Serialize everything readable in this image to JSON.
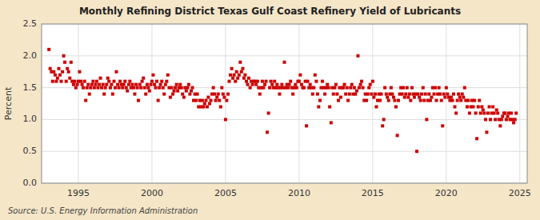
{
  "chart_data": {
    "type": "scatter",
    "title": "Monthly Refining District Texas Gulf Coast Refinery Yield of Lubricants",
    "y_label": "Percent",
    "annotations": [
      "Source: U.S. Energy Information Administration"
    ],
    "color": "#cc0000",
    "marker": "square",
    "grid": true,
    "xlim": [
      1992.5,
      2025.5
    ],
    "xticks": [
      1995,
      2000,
      2005,
      2010,
      2015,
      2020,
      2025
    ],
    "ylim": [
      0.0,
      2.5
    ],
    "yticks": [
      {
        "value": 0.0,
        "label": "0.0"
      },
      0.5,
      {
        "value": 1.0,
        "label": "1.0"
      },
      1.5,
      {
        "value": 2.0,
        "label": "2.0"
      },
      2.5
    ],
    "x": [
      1993.0,
      1993.08,
      1993.17,
      1993.25,
      1993.33,
      1993.42,
      1993.5,
      1993.58,
      1993.67,
      1993.75,
      1993.83,
      1993.92,
      1994.0,
      1994.08,
      1994.17,
      1994.25,
      1994.33,
      1994.42,
      1994.5,
      1994.58,
      1994.67,
      1994.75,
      1994.83,
      1994.92,
      1995.0,
      1995.08,
      1995.17,
      1995.25,
      1995.33,
      1995.42,
      1995.5,
      1995.58,
      1995.67,
      1995.75,
      1995.83,
      1995.92,
      1996.0,
      1996.08,
      1996.17,
      1996.25,
      1996.33,
      1996.42,
      1996.5,
      1996.58,
      1996.67,
      1996.75,
      1996.83,
      1996.92,
      1997.0,
      1997.08,
      1997.17,
      1997.25,
      1997.33,
      1997.42,
      1997.5,
      1997.58,
      1997.67,
      1997.75,
      1997.83,
      1997.92,
      1998.0,
      1998.08,
      1998.17,
      1998.25,
      1998.33,
      1998.42,
      1998.5,
      1998.58,
      1998.67,
      1998.75,
      1998.83,
      1998.92,
      1999.0,
      1999.08,
      1999.17,
      1999.25,
      1999.33,
      1999.42,
      1999.5,
      1999.58,
      1999.67,
      1999.75,
      1999.83,
      1999.92,
      2000.0,
      2000.08,
      2000.17,
      2000.25,
      2000.33,
      2000.42,
      2000.5,
      2000.58,
      2000.67,
      2000.75,
      2000.83,
      2000.92,
      2001.0,
      2001.08,
      2001.17,
      2001.25,
      2001.33,
      2001.42,
      2001.5,
      2001.58,
      2001.67,
      2001.75,
      2001.83,
      2001.92,
      2002.0,
      2002.08,
      2002.17,
      2002.25,
      2002.33,
      2002.42,
      2002.5,
      2002.58,
      2002.67,
      2002.75,
      2002.83,
      2002.92,
      2003.0,
      2003.08,
      2003.17,
      2003.25,
      2003.33,
      2003.42,
      2003.5,
      2003.58,
      2003.67,
      2003.75,
      2003.83,
      2003.92,
      2004.0,
      2004.08,
      2004.17,
      2004.25,
      2004.33,
      2004.42,
      2004.5,
      2004.58,
      2004.67,
      2004.75,
      2004.83,
      2004.92,
      2005.0,
      2005.08,
      2005.17,
      2005.25,
      2005.33,
      2005.42,
      2005.5,
      2005.58,
      2005.67,
      2005.75,
      2005.83,
      2005.92,
      2006.0,
      2006.08,
      2006.17,
      2006.25,
      2006.33,
      2006.42,
      2006.5,
      2006.58,
      2006.67,
      2006.75,
      2006.83,
      2006.92,
      2007.0,
      2007.08,
      2007.17,
      2007.25,
      2007.33,
      2007.42,
      2007.5,
      2007.58,
      2007.67,
      2007.75,
      2007.83,
      2007.92,
      2008.0,
      2008.08,
      2008.17,
      2008.25,
      2008.33,
      2008.42,
      2008.5,
      2008.58,
      2008.67,
      2008.75,
      2008.83,
      2008.92,
      2009.0,
      2009.08,
      2009.17,
      2009.25,
      2009.33,
      2009.42,
      2009.5,
      2009.58,
      2009.67,
      2009.75,
      2009.83,
      2009.92,
      2010.0,
      2010.08,
      2010.17,
      2010.25,
      2010.33,
      2010.42,
      2010.5,
      2010.58,
      2010.67,
      2010.75,
      2010.83,
      2010.92,
      2011.0,
      2011.08,
      2011.17,
      2011.25,
      2011.33,
      2011.42,
      2011.5,
      2011.58,
      2011.67,
      2011.75,
      2011.83,
      2011.92,
      2012.0,
      2012.08,
      2012.17,
      2012.25,
      2012.33,
      2012.42,
      2012.5,
      2012.58,
      2012.67,
      2012.75,
      2012.83,
      2012.92,
      2013.0,
      2013.08,
      2013.17,
      2013.25,
      2013.33,
      2013.42,
      2013.5,
      2013.58,
      2013.67,
      2013.75,
      2013.83,
      2013.92,
      2014.0,
      2014.08,
      2014.17,
      2014.25,
      2014.33,
      2014.42,
      2014.5,
      2014.58,
      2014.67,
      2014.75,
      2014.83,
      2014.92,
      2015.0,
      2015.08,
      2015.17,
      2015.25,
      2015.33,
      2015.42,
      2015.5,
      2015.58,
      2015.67,
      2015.75,
      2015.83,
      2015.92,
      2016.0,
      2016.08,
      2016.17,
      2016.25,
      2016.33,
      2016.42,
      2016.5,
      2016.58,
      2016.67,
      2016.75,
      2016.83,
      2016.92,
      2017.0,
      2017.08,
      2017.17,
      2017.25,
      2017.33,
      2017.42,
      2017.5,
      2017.58,
      2017.67,
      2017.75,
      2017.83,
      2017.92,
      2018.0,
      2018.08,
      2018.17,
      2018.25,
      2018.33,
      2018.42,
      2018.5,
      2018.58,
      2018.67,
      2018.75,
      2018.83,
      2018.92,
      2019.0,
      2019.08,
      2019.17,
      2019.25,
      2019.33,
      2019.42,
      2019.5,
      2019.58,
      2019.67,
      2019.75,
      2019.83,
      2019.92,
      2020.0,
      2020.08,
      2020.17,
      2020.25,
      2020.33,
      2020.42,
      2020.5,
      2020.58,
      2020.67,
      2020.75,
      2020.83,
      2020.92,
      2021.0,
      2021.08,
      2021.17,
      2021.25,
      2021.33,
      2021.42,
      2021.5,
      2021.58,
      2021.67,
      2021.75,
      2021.83,
      2021.92,
      2022.0,
      2022.08,
      2022.17,
      2022.25,
      2022.33,
      2022.42,
      2022.5,
      2022.58,
      2022.67,
      2022.75,
      2022.83,
      2022.92,
      2023.0,
      2023.08,
      2023.17,
      2023.25,
      2023.33,
      2023.42,
      2023.5,
      2023.58,
      2023.67,
      2023.75,
      2023.83,
      2023.92,
      2024.0,
      2024.08,
      2024.17,
      2024.25,
      2024.33,
      2024.42,
      2024.5,
      2024.58,
      2024.67,
      2024.75
    ],
    "values": [
      2.1,
      1.8,
      1.75,
      1.6,
      1.75,
      1.7,
      1.6,
      1.65,
      1.8,
      1.7,
      1.6,
      1.75,
      2.0,
      1.9,
      1.6,
      1.8,
      1.75,
      1.65,
      1.9,
      1.6,
      1.55,
      1.6,
      1.5,
      1.55,
      1.6,
      1.75,
      1.6,
      1.55,
      1.5,
      1.6,
      1.3,
      1.5,
      1.55,
      1.4,
      1.5,
      1.55,
      1.6,
      1.5,
      1.55,
      1.6,
      1.5,
      1.55,
      1.65,
      1.5,
      1.55,
      1.4,
      1.5,
      1.55,
      1.65,
      1.6,
      1.5,
      1.55,
      1.4,
      1.6,
      1.5,
      1.75,
      1.55,
      1.5,
      1.6,
      1.55,
      1.5,
      1.55,
      1.6,
      1.5,
      1.45,
      1.55,
      1.6,
      1.5,
      1.55,
      1.5,
      1.4,
      1.55,
      1.5,
      1.3,
      1.55,
      1.5,
      1.6,
      1.65,
      1.5,
      1.4,
      1.55,
      1.5,
      1.45,
      1.55,
      1.6,
      1.7,
      1.55,
      1.5,
      1.6,
      1.3,
      1.5,
      1.55,
      1.6,
      1.5,
      1.4,
      1.55,
      1.6,
      1.7,
      1.5,
      1.35,
      1.5,
      1.4,
      1.45,
      1.5,
      1.55,
      1.45,
      1.5,
      1.55,
      1.5,
      1.4,
      1.35,
      1.5,
      1.45,
      1.5,
      1.55,
      1.4,
      1.45,
      1.5,
      1.3,
      1.4,
      1.3,
      1.4,
      1.2,
      1.3,
      1.2,
      1.3,
      1.2,
      1.25,
      1.3,
      1.2,
      1.35,
      1.25,
      1.3,
      1.4,
      1.5,
      1.4,
      1.3,
      1.35,
      1.4,
      1.3,
      1.2,
      1.5,
      1.4,
      1.35,
      1.0,
      1.3,
      1.4,
      1.6,
      1.7,
      1.8,
      1.65,
      1.7,
      1.6,
      1.75,
      1.65,
      1.7,
      1.9,
      1.75,
      1.8,
      1.65,
      1.7,
      1.6,
      1.55,
      1.65,
      1.5,
      1.6,
      1.55,
      1.6,
      1.6,
      1.55,
      1.6,
      1.5,
      1.4,
      1.5,
      1.6,
      1.5,
      1.55,
      1.6,
      0.8,
      1.1,
      1.5,
      1.6,
      1.55,
      1.5,
      1.6,
      1.5,
      1.55,
      1.5,
      1.4,
      1.5,
      1.55,
      1.5,
      1.9,
      1.5,
      1.55,
      1.5,
      1.55,
      1.6,
      1.5,
      1.4,
      1.5,
      1.55,
      1.5,
      1.6,
      1.6,
      1.7,
      1.55,
      1.5,
      1.5,
      1.6,
      0.9,
      1.6,
      1.5,
      1.55,
      1.5,
      1.4,
      1.5,
      1.7,
      1.6,
      1.4,
      1.2,
      1.3,
      1.5,
      1.6,
      1.5,
      1.4,
      1.5,
      1.55,
      1.5,
      1.2,
      0.95,
      1.5,
      1.4,
      1.5,
      1.55,
      1.4,
      1.3,
      1.5,
      1.35,
      1.5,
      1.5,
      1.55,
      1.4,
      1.5,
      1.3,
      1.4,
      1.5,
      1.55,
      1.4,
      1.5,
      1.4,
      1.45,
      2.0,
      1.5,
      1.55,
      1.6,
      1.5,
      1.3,
      1.4,
      1.3,
      1.4,
      1.5,
      1.55,
      1.4,
      1.6,
      1.35,
      1.4,
      1.2,
      1.3,
      1.4,
      1.3,
      1.4,
      0.9,
      1.0,
      1.5,
      1.4,
      1.35,
      1.3,
      1.4,
      1.5,
      1.4,
      1.35,
      1.3,
      1.2,
      0.75,
      1.3,
      1.4,
      1.5,
      1.4,
      1.5,
      1.35,
      1.4,
      1.5,
      1.35,
      1.4,
      1.3,
      1.5,
      1.4,
      1.35,
      1.4,
      0.5,
      1.4,
      1.35,
      1.3,
      1.4,
      1.5,
      1.3,
      1.4,
      1.0,
      1.3,
      1.4,
      1.3,
      1.35,
      1.5,
      1.4,
      1.5,
      1.3,
      1.4,
      1.5,
      1.4,
      1.3,
      0.9,
      1.4,
      1.35,
      1.5,
      1.4,
      1.35,
      1.3,
      1.35,
      1.3,
      1.4,
      1.2,
      1.1,
      1.3,
      1.4,
      1.35,
      1.3,
      1.4,
      1.35,
      1.5,
      1.3,
      1.2,
      1.3,
      1.1,
      1.2,
      1.3,
      1.2,
      1.3,
      1.1,
      0.7,
      1.2,
      1.3,
      1.1,
      1.2,
      1.15,
      1.1,
      1.0,
      0.8,
      1.1,
      1.2,
      1.0,
      1.1,
      1.2,
      1.1,
      1.0,
      1.15,
      1.1,
      1.0,
      0.9,
      1.0,
      1.05,
      1.1,
      1.1,
      1.0,
      1.05,
      1.1,
      1.0,
      1.1,
      1.0,
      0.95,
      1.0,
      1.1
    ]
  }
}
